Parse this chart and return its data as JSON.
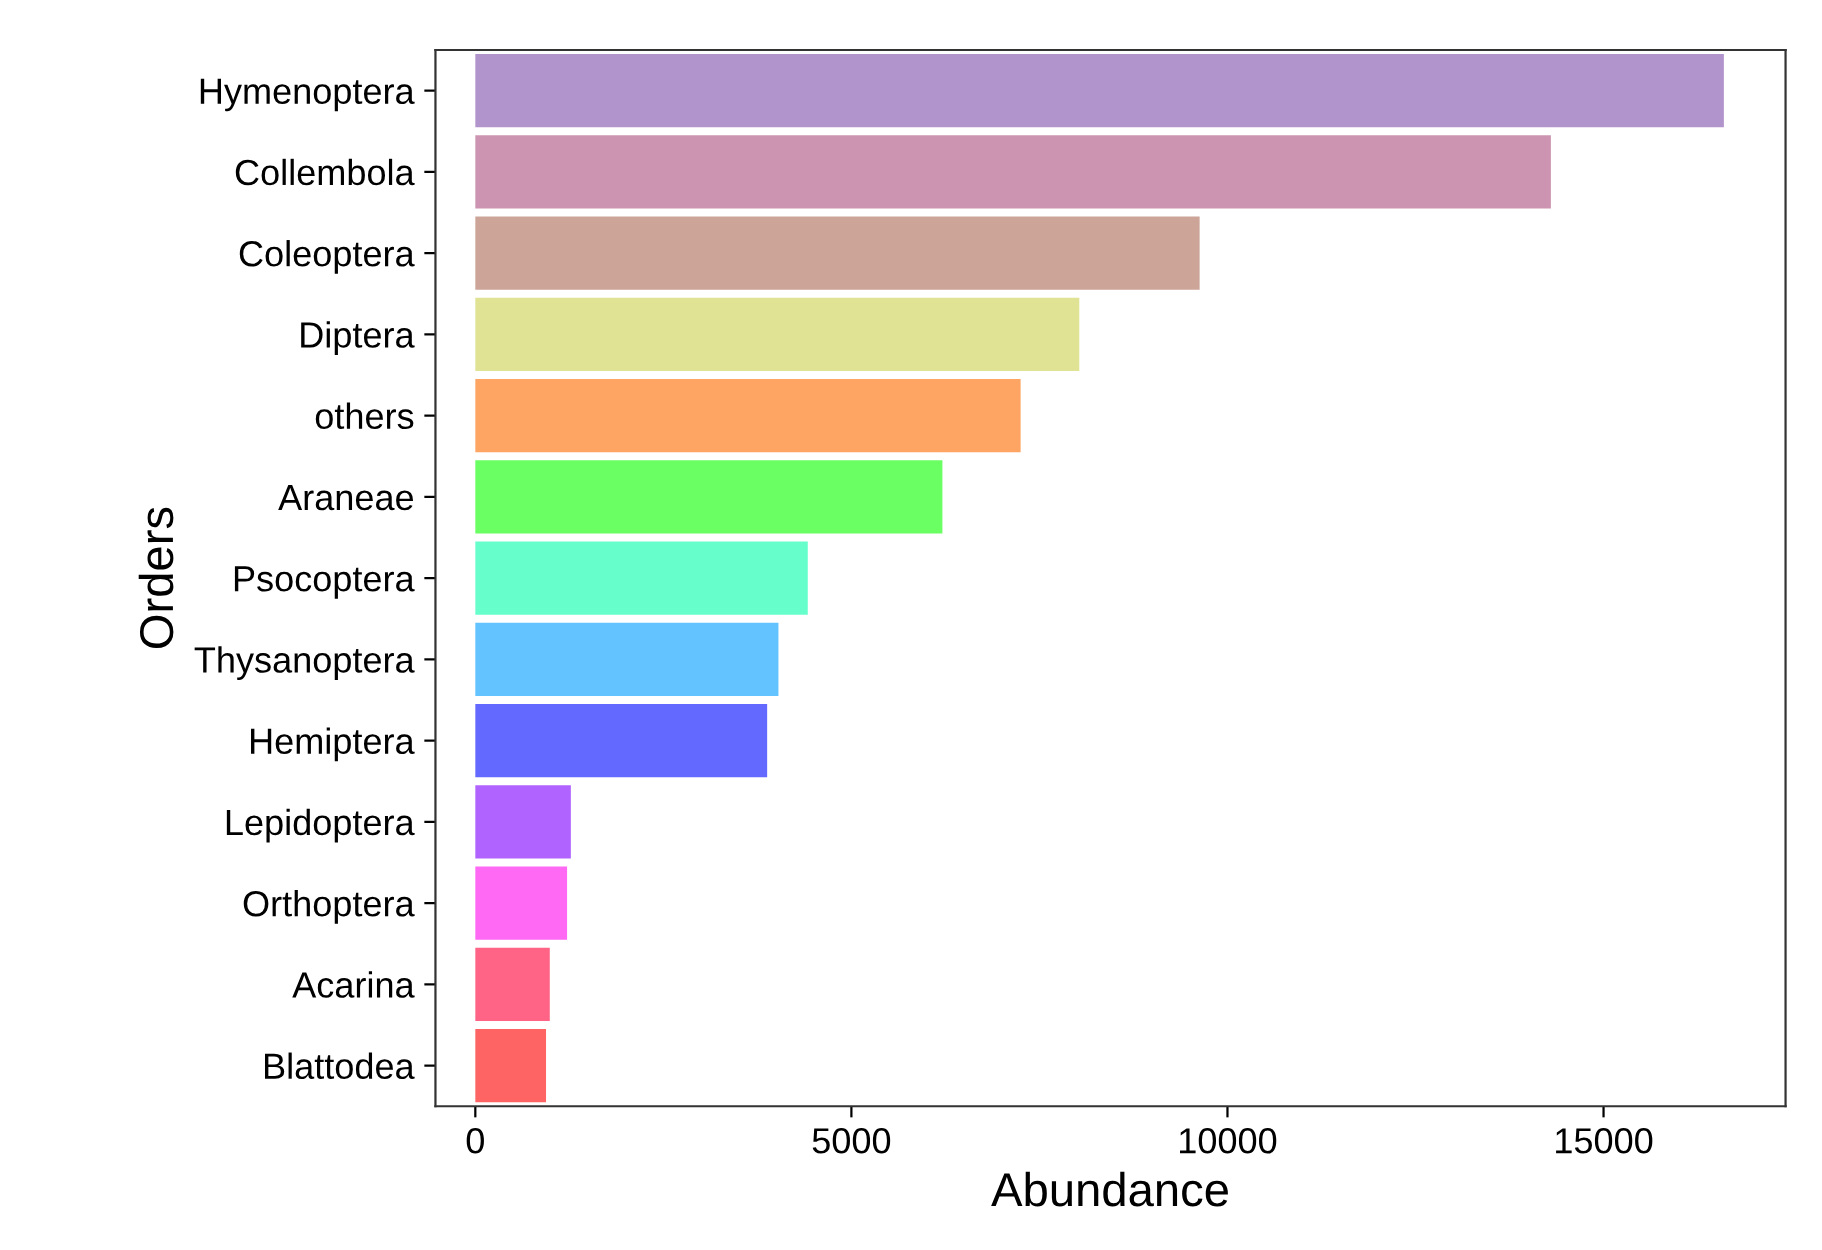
{
  "chart_data": {
    "type": "bar",
    "orientation": "horizontal",
    "xlabel": "Abundance",
    "ylabel": "Orders",
    "categories": [
      "Hymenoptera",
      "Collembola",
      "Coleoptera",
      "Diptera",
      "others",
      "Araneae",
      "Psocoptera",
      "Thysanoptera",
      "Hemiptera",
      "Lepidoptera",
      "Orthoptera",
      "Acarina",
      "Blattodea"
    ],
    "values": [
      16600,
      14300,
      9630,
      8030,
      7250,
      6210,
      4420,
      4030,
      3880,
      1270,
      1220,
      990,
      940
    ],
    "colors": [
      "#b294cc",
      "#cc94b0",
      "#cca498",
      "#e0e394",
      "#ffa563",
      "#6aff63",
      "#66ffcc",
      "#63c3ff",
      "#6369ff",
      "#b063ff",
      "#ff69f3",
      "#ff6487",
      "#ff6464"
    ],
    "xlim": [
      -530,
      17420
    ],
    "xticks": [
      0,
      5000,
      10000,
      15000
    ],
    "grid": false
  }
}
